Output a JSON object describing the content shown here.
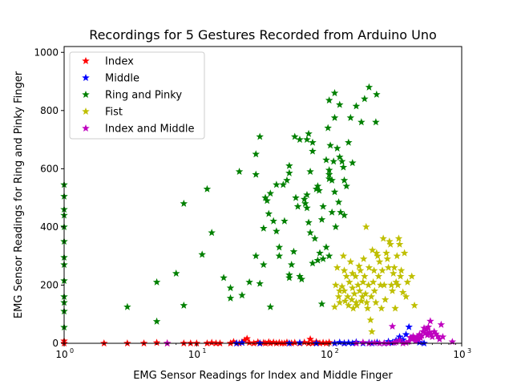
{
  "chart_data": {
    "type": "scatter",
    "title": "Recordings for 5 Gestures Recorded from Arduino Uno",
    "xlabel": "EMG Sensor Readings for Index and Middle Finger",
    "ylabel": "EMG Sensor Readings for Ring and Pinky Finger",
    "xscale": "log",
    "xlim": [
      1,
      1000
    ],
    "ylim": [
      0,
      1020
    ],
    "yticks": [
      0,
      200,
      400,
      600,
      800,
      1000
    ],
    "xticks": [
      {
        "value": 1,
        "base": "10",
        "exp": "0"
      },
      {
        "value": 10,
        "base": "10",
        "exp": "1"
      },
      {
        "value": 100,
        "base": "10",
        "exp": "2"
      },
      {
        "value": 1000,
        "base": "10",
        "exp": "3"
      }
    ],
    "grid": false,
    "legend_position": "top-left",
    "marker": "star",
    "series": [
      {
        "name": "Index",
        "color": "#ff0000",
        "points": [
          [
            1,
            0
          ],
          [
            1,
            8
          ],
          [
            2,
            0
          ],
          [
            3,
            0
          ],
          [
            4,
            0
          ],
          [
            5,
            2
          ],
          [
            6,
            0
          ],
          [
            8,
            0
          ],
          [
            9,
            0
          ],
          [
            10,
            0
          ],
          [
            12,
            0
          ],
          [
            13,
            2
          ],
          [
            14,
            0
          ],
          [
            15,
            0
          ],
          [
            18,
            0
          ],
          [
            19,
            5
          ],
          [
            20,
            0
          ],
          [
            21,
            0
          ],
          [
            22,
            3
          ],
          [
            23,
            10
          ],
          [
            24,
            16
          ],
          [
            25,
            2
          ],
          [
            27,
            0
          ],
          [
            29,
            4
          ],
          [
            30,
            0
          ],
          [
            32,
            2
          ],
          [
            33,
            0
          ],
          [
            35,
            4
          ],
          [
            36,
            0
          ],
          [
            38,
            3
          ],
          [
            40,
            0
          ],
          [
            42,
            2
          ],
          [
            44,
            0
          ],
          [
            46,
            0
          ],
          [
            48,
            3
          ],
          [
            52,
            0
          ],
          [
            55,
            2
          ],
          [
            60,
            0
          ],
          [
            65,
            3
          ],
          [
            70,
            0
          ],
          [
            72,
            14
          ],
          [
            75,
            0
          ],
          [
            80,
            5
          ],
          [
            85,
            0
          ],
          [
            90,
            2
          ],
          [
            95,
            0
          ],
          [
            100,
            3
          ],
          [
            110,
            0
          ],
          [
            130,
            0
          ]
        ]
      },
      {
        "name": "Middle",
        "color": "#0000ff",
        "points": [
          [
            20,
            0
          ],
          [
            22,
            2
          ],
          [
            30,
            0
          ],
          [
            50,
            0
          ],
          [
            60,
            2
          ],
          [
            80,
            0
          ],
          [
            110,
            0
          ],
          [
            120,
            3
          ],
          [
            130,
            0
          ],
          [
            140,
            2
          ],
          [
            150,
            0
          ],
          [
            160,
            4
          ],
          [
            180,
            0
          ],
          [
            200,
            2
          ],
          [
            210,
            0
          ],
          [
            230,
            3
          ],
          [
            260,
            0
          ],
          [
            280,
            6
          ],
          [
            300,
            2
          ],
          [
            320,
            10
          ],
          [
            340,
            22
          ],
          [
            360,
            12
          ],
          [
            380,
            30
          ],
          [
            400,
            56
          ],
          [
            420,
            18
          ],
          [
            450,
            8
          ],
          [
            480,
            3
          ],
          [
            520,
            0
          ]
        ]
      },
      {
        "name": "Ring and Pinky",
        "color": "#008000",
        "points": [
          [
            1,
            545
          ],
          [
            1,
            505
          ],
          [
            1,
            460
          ],
          [
            1,
            440
          ],
          [
            1,
            400
          ],
          [
            1,
            350
          ],
          [
            1,
            295
          ],
          [
            1,
            270
          ],
          [
            1,
            215
          ],
          [
            1,
            160
          ],
          [
            1,
            140
          ],
          [
            1,
            110
          ],
          [
            1,
            55
          ],
          [
            3,
            125
          ],
          [
            5,
            75
          ],
          [
            5,
            210
          ],
          [
            7,
            240
          ],
          [
            8,
            480
          ],
          [
            8,
            130
          ],
          [
            11,
            305
          ],
          [
            12,
            530
          ],
          [
            13,
            380
          ],
          [
            16,
            225
          ],
          [
            18,
            190
          ],
          [
            18,
            155
          ],
          [
            21,
            590
          ],
          [
            22,
            165
          ],
          [
            25,
            210
          ],
          [
            28,
            650
          ],
          [
            28,
            580
          ],
          [
            28,
            300
          ],
          [
            30,
            710
          ],
          [
            30,
            205
          ],
          [
            32,
            270
          ],
          [
            32,
            395
          ],
          [
            33,
            500
          ],
          [
            34,
            490
          ],
          [
            35,
            445
          ],
          [
            36,
            515
          ],
          [
            36,
            125
          ],
          [
            38,
            420
          ],
          [
            40,
            545
          ],
          [
            40,
            385
          ],
          [
            42,
            330
          ],
          [
            42,
            300
          ],
          [
            45,
            545
          ],
          [
            46,
            420
          ],
          [
            48,
            560
          ],
          [
            50,
            610
          ],
          [
            50,
            585
          ],
          [
            50,
            235
          ],
          [
            50,
            225
          ],
          [
            52,
            270
          ],
          [
            54,
            315
          ],
          [
            55,
            710
          ],
          [
            56,
            500
          ],
          [
            58,
            470
          ],
          [
            60,
            700
          ],
          [
            60,
            230
          ],
          [
            62,
            220
          ],
          [
            65,
            495
          ],
          [
            66,
            480
          ],
          [
            68,
            700
          ],
          [
            68,
            510
          ],
          [
            68,
            465
          ],
          [
            70,
            720
          ],
          [
            70,
            415
          ],
          [
            72,
            590
          ],
          [
            72,
            380
          ],
          [
            75,
            660
          ],
          [
            75,
            690
          ],
          [
            75,
            275
          ],
          [
            78,
            360
          ],
          [
            80,
            530
          ],
          [
            82,
            540
          ],
          [
            84,
            525
          ],
          [
            85,
            310
          ],
          [
            88,
            425
          ],
          [
            90,
            470
          ],
          [
            90,
            290
          ],
          [
            95,
            330
          ],
          [
            95,
            630
          ],
          [
            98,
            740
          ],
          [
            100,
            595
          ],
          [
            100,
            580
          ],
          [
            100,
            565
          ],
          [
            100,
            835
          ],
          [
            100,
            300
          ],
          [
            102,
            680
          ],
          [
            105,
            560
          ],
          [
            105,
            450
          ],
          [
            108,
            625
          ],
          [
            110,
            860
          ],
          [
            110,
            775
          ],
          [
            110,
            520
          ],
          [
            112,
            400
          ],
          [
            115,
            670
          ],
          [
            118,
            485
          ],
          [
            120,
            820
          ],
          [
            120,
            640
          ],
          [
            122,
            450
          ],
          [
            125,
            625
          ],
          [
            128,
            605
          ],
          [
            130,
            560
          ],
          [
            130,
            440
          ],
          [
            135,
            540
          ],
          [
            140,
            690
          ],
          [
            145,
            775
          ],
          [
            150,
            620
          ],
          [
            160,
            815
          ],
          [
            175,
            760
          ],
          [
            185,
            840
          ],
          [
            200,
            880
          ],
          [
            225,
            760
          ],
          [
            228,
            855
          ],
          [
            82,
            285
          ],
          [
            88,
            135
          ]
        ]
      },
      {
        "name": "Fist",
        "color": "#bfbf00",
        "points": [
          [
            110,
            125
          ],
          [
            112,
            200
          ],
          [
            115,
            260
          ],
          [
            118,
            160
          ],
          [
            120,
            180
          ],
          [
            120,
            140
          ],
          [
            125,
            195
          ],
          [
            128,
            300
          ],
          [
            130,
            250
          ],
          [
            130,
            180
          ],
          [
            132,
            145
          ],
          [
            135,
            230
          ],
          [
            138,
            160
          ],
          [
            140,
            130
          ],
          [
            142,
            210
          ],
          [
            145,
            280
          ],
          [
            148,
            150
          ],
          [
            150,
            240
          ],
          [
            150,
            190
          ],
          [
            152,
            120
          ],
          [
            155,
            170
          ],
          [
            158,
            230
          ],
          [
            160,
            140
          ],
          [
            162,
            130
          ],
          [
            165,
            200
          ],
          [
            168,
            265
          ],
          [
            170,
            180
          ],
          [
            172,
            250
          ],
          [
            175,
            145
          ],
          [
            178,
            160
          ],
          [
            180,
            210
          ],
          [
            182,
            290
          ],
          [
            185,
            230
          ],
          [
            188,
            170
          ],
          [
            190,
            400
          ],
          [
            192,
            140
          ],
          [
            195,
            120
          ],
          [
            198,
            200
          ],
          [
            200,
            260
          ],
          [
            205,
            80
          ],
          [
            208,
            160
          ],
          [
            210,
            40
          ],
          [
            212,
            320
          ],
          [
            215,
            210
          ],
          [
            218,
            250
          ],
          [
            220,
            180
          ],
          [
            225,
            140
          ],
          [
            228,
            310
          ],
          [
            232,
            300
          ],
          [
            236,
            230
          ],
          [
            240,
            280
          ],
          [
            244,
            200
          ],
          [
            248,
            120
          ],
          [
            252,
            250
          ],
          [
            256,
            360
          ],
          [
            260,
            200
          ],
          [
            265,
            150
          ],
          [
            270,
            310
          ],
          [
            275,
            290
          ],
          [
            280,
            260
          ],
          [
            285,
            350
          ],
          [
            290,
            340
          ],
          [
            295,
            200
          ],
          [
            300,
            180
          ],
          [
            305,
            240
          ],
          [
            310,
            260
          ],
          [
            315,
            120
          ],
          [
            320,
            210
          ],
          [
            325,
            300
          ],
          [
            330,
            200
          ],
          [
            335,
            360
          ],
          [
            340,
            340
          ],
          [
            345,
            230
          ],
          [
            350,
            250
          ],
          [
            360,
            175
          ],
          [
            370,
            310
          ],
          [
            380,
            160
          ],
          [
            390,
            210
          ],
          [
            420,
            230
          ],
          [
            440,
            130
          ]
        ]
      },
      {
        "name": "Index and Middle",
        "color": "#bf00bf",
        "points": [
          [
            6,
            0
          ],
          [
            160,
            0
          ],
          [
            180,
            3
          ],
          [
            200,
            0
          ],
          [
            220,
            2
          ],
          [
            240,
            0
          ],
          [
            260,
            0
          ],
          [
            280,
            0
          ],
          [
            300,
            58
          ],
          [
            310,
            2
          ],
          [
            320,
            4
          ],
          [
            340,
            10
          ],
          [
            360,
            0
          ],
          [
            380,
            2
          ],
          [
            400,
            6
          ],
          [
            410,
            20
          ],
          [
            420,
            14
          ],
          [
            430,
            24
          ],
          [
            440,
            18
          ],
          [
            450,
            8
          ],
          [
            460,
            22
          ],
          [
            470,
            12
          ],
          [
            480,
            30
          ],
          [
            490,
            18
          ],
          [
            500,
            26
          ],
          [
            510,
            40
          ],
          [
            520,
            52
          ],
          [
            530,
            34
          ],
          [
            540,
            46
          ],
          [
            550,
            28
          ],
          [
            560,
            56
          ],
          [
            570,
            38
          ],
          [
            580,
            76
          ],
          [
            590,
            30
          ],
          [
            600,
            22
          ],
          [
            620,
            40
          ],
          [
            640,
            32
          ],
          [
            660,
            24
          ],
          [
            680,
            14
          ],
          [
            700,
            64
          ],
          [
            720,
            22
          ],
          [
            850,
            5
          ]
        ]
      }
    ]
  }
}
